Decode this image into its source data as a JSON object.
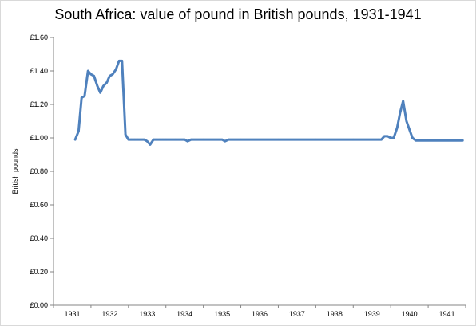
{
  "chart_data": {
    "type": "line",
    "title": "South Africa: value of pound in British pounds, 1931-1941",
    "xlabel": "",
    "ylabel": "British pounds",
    "xlim": [
      1931,
      1942
    ],
    "ylim": [
      0,
      1.6
    ],
    "x_ticks": [
      "1931",
      "1932",
      "1933",
      "1934",
      "1935",
      "1936",
      "1937",
      "1938",
      "1939",
      "1940",
      "1941"
    ],
    "y_ticks": [
      "£0.00",
      "£0.20",
      "£0.40",
      "£0.60",
      "£0.80",
      "£1.00",
      "£1.20",
      "£1.40",
      "£1.60"
    ],
    "grid": false,
    "legend": "none",
    "series_color": "#4f81bd",
    "x": [
      1931.58,
      1931.67,
      1931.75,
      1931.83,
      1931.92,
      1932.0,
      1932.08,
      1932.17,
      1932.25,
      1932.33,
      1932.42,
      1932.5,
      1932.58,
      1932.67,
      1932.75,
      1932.83,
      1932.92,
      1933.0,
      1933.08,
      1933.17,
      1933.25,
      1933.33,
      1933.42,
      1933.5,
      1933.58,
      1933.67,
      1933.75,
      1933.83,
      1933.92,
      1934.0,
      1934.25,
      1934.5,
      1934.58,
      1934.67,
      1935.0,
      1935.5,
      1935.58,
      1935.67,
      1936.0,
      1937.0,
      1938.0,
      1939.0,
      1939.67,
      1939.75,
      1939.83,
      1939.92,
      1940.0,
      1940.08,
      1940.17,
      1940.25,
      1940.33,
      1940.42,
      1940.5,
      1940.58,
      1940.67,
      1940.75,
      1940.83,
      1941.0,
      1941.5,
      1941.92
    ],
    "y": [
      0.99,
      1.04,
      1.24,
      1.25,
      1.4,
      1.38,
      1.37,
      1.31,
      1.27,
      1.31,
      1.33,
      1.37,
      1.38,
      1.41,
      1.46,
      1.46,
      1.02,
      0.99,
      0.99,
      0.99,
      0.99,
      0.99,
      0.99,
      0.98,
      0.96,
      0.99,
      0.99,
      0.99,
      0.99,
      0.99,
      0.99,
      0.99,
      0.98,
      0.99,
      0.99,
      0.99,
      0.98,
      0.99,
      0.99,
      0.99,
      0.99,
      0.99,
      0.99,
      0.99,
      1.01,
      1.01,
      1.0,
      1.0,
      1.06,
      1.15,
      1.22,
      1.1,
      1.05,
      1.0,
      0.985,
      0.985,
      0.985,
      0.985,
      0.985,
      0.985
    ]
  }
}
